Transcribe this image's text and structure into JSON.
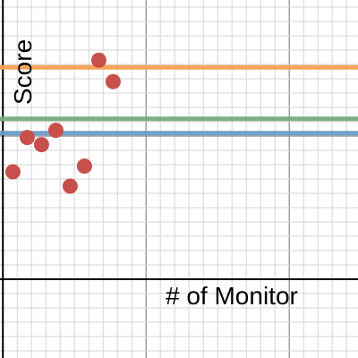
{
  "chart_data": {
    "type": "scatter",
    "title": "",
    "xlabel": "# of Monitor",
    "ylabel": "Score",
    "xlim": [
      -0.2,
      24.8
    ],
    "ylim": [
      -5.5,
      19.5
    ],
    "grid": true,
    "points": [
      {
        "x": 0.7,
        "y": 7.5
      },
      {
        "x": 1.7,
        "y": 9.9
      },
      {
        "x": 2.7,
        "y": 9.4
      },
      {
        "x": 3.7,
        "y": 10.4
      },
      {
        "x": 4.7,
        "y": 6.5
      },
      {
        "x": 5.7,
        "y": 7.9
      },
      {
        "x": 6.7,
        "y": 15.3
      },
      {
        "x": 7.7,
        "y": 13.8
      }
    ],
    "hlines": [
      {
        "y": 14.8,
        "color": "#F5A04E"
      },
      {
        "y": 11.2,
        "color": "#74AD7C"
      },
      {
        "y": 10.2,
        "color": "#6A9AC8"
      }
    ],
    "point_color": "#C8504A"
  }
}
